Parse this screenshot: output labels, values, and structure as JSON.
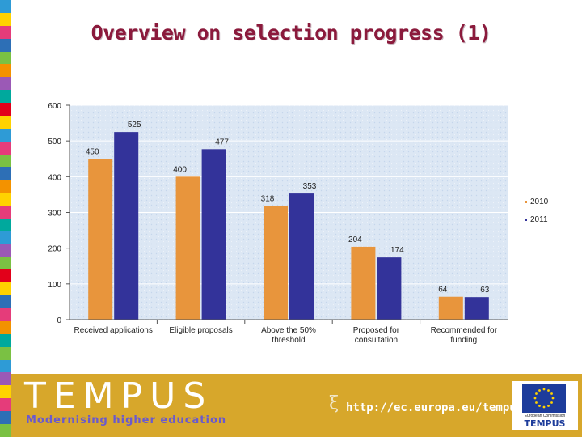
{
  "slide": {
    "title": "Overview on selection progress (1)"
  },
  "chart_data": {
    "type": "bar",
    "categories": [
      "Received applications",
      "Eligible proposals",
      "Above the 50% threshold",
      "Proposed for consultation",
      "Recommended for funding"
    ],
    "category_lines": [
      [
        "Received applications"
      ],
      [
        "Eligible proposals"
      ],
      [
        "Above the 50%",
        "threshold"
      ],
      [
        "Proposed for",
        "consultation"
      ],
      [
        "Recommended for",
        "funding"
      ]
    ],
    "series": [
      {
        "name": "2010",
        "values": [
          450,
          400,
          318,
          204,
          64
        ],
        "color": "#e8953c"
      },
      {
        "name": "2011",
        "values": [
          525,
          477,
          353,
          174,
          63
        ],
        "color": "#33339a"
      }
    ],
    "yticks": [
      0,
      100,
      200,
      300,
      400,
      500,
      600
    ],
    "ylim": [
      0,
      600
    ],
    "legend_placement": "right",
    "grid": true
  },
  "footer": {
    "logo": "TEMPUS",
    "tagline": "Modernising higher education",
    "url": "http://ec.europa.eu/tempus",
    "eu_caption": "European Commission",
    "eu_logo": "TEMPUS"
  },
  "colors": {
    "title": "#8b1a3c",
    "plot_background": "#dce7f4",
    "footer": "#d7a72b",
    "stripe": [
      "#2e9bd6",
      "#ffd200",
      "#e53c7a",
      "#2d6fb6",
      "#7ac143",
      "#f39200",
      "#9b59b6",
      "#00a99d",
      "#e2001a",
      "#ffd200",
      "#2e9bd6",
      "#e53c7a",
      "#7ac143",
      "#2d6fb6",
      "#f39200",
      "#ffd200",
      "#e53c7a",
      "#00a99d",
      "#2e9bd6",
      "#9b59b6",
      "#7ac143",
      "#e2001a",
      "#ffd200",
      "#2d6fb6",
      "#e53c7a",
      "#f39200",
      "#00a99d",
      "#7ac143",
      "#2e9bd6",
      "#9b59b6",
      "#ffd200",
      "#e53c7a",
      "#2d6fb6",
      "#7ac143"
    ]
  }
}
